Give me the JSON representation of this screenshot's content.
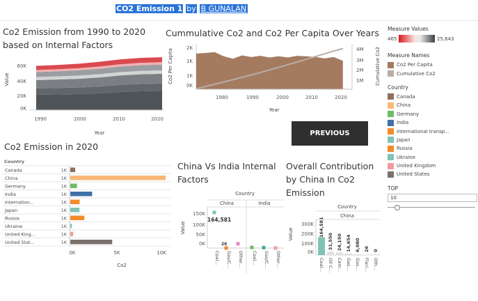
{
  "header": {
    "title": "CO2 Emission 1",
    "by": "by",
    "author": "B GUNALAN"
  },
  "prev_button": {
    "label": "PREVIOUS"
  },
  "colors": {
    "canada": "#8f6f5e",
    "china": "#f9b876",
    "germany": "#6ebc62",
    "india": "#3f70a8",
    "international": "#f28b2a",
    "japan": "#7fc3b7",
    "russia": "#f28b2a",
    "ukraine": "#7fc3b7",
    "united_kingdom": "#f19b9b",
    "united_states": "#7a716c",
    "cumulative": "#b8ada6",
    "per_capita": "#a57b60"
  },
  "legends": {
    "measure_values": {
      "title": "Measure Values",
      "min": "465",
      "max": "25,643"
    },
    "measure_names": {
      "title": "Measure Names",
      "items": [
        "Co2 Per Capita",
        "Cumulative Co2"
      ]
    },
    "country": {
      "title": "Country",
      "items": [
        "Canada",
        "China",
        "Germany",
        "India",
        "International transp...",
        "Japan",
        "Russia",
        "Ukraine",
        "United Kingdom",
        "United States"
      ]
    },
    "top": {
      "title": "TOP",
      "value": "10",
      "slider_level": 0.1
    }
  },
  "charts": {
    "area": {
      "title": "Co2 Emission from 1990 to 2020 based on Internal Factors",
      "title_lines": [
        "Co2 Emission from 1990 to 2020",
        "based on Internal Factors"
      ],
      "ylabel": "Value",
      "xlabel": "Year",
      "yticks": [
        "60K",
        "40K",
        "20K",
        "0K"
      ],
      "xticks": [
        "1990",
        "2000",
        "2010",
        "2020"
      ]
    },
    "cumulative": {
      "title": "Cummulative Co2 and Co2 Per Capita Over Years",
      "ylabel_left": "Co2 Per Capita",
      "ylabel_right": "Cumulative Co2",
      "xlabel": "Year",
      "yticks_left": [
        "2K",
        "1K",
        "1K",
        "0K"
      ],
      "yticks_right": [
        "4M",
        "3M",
        "2M",
        "1M"
      ],
      "xticks": [
        "1980",
        "1990",
        "2000",
        "2010",
        "2020"
      ]
    },
    "emission2020": {
      "title": "Co2 Emission in 2020",
      "header": "Country",
      "xlabel": "Co2",
      "xticks": [
        "0K",
        "5K",
        "10K"
      ],
      "row_value_label": "1K",
      "rows": [
        {
          "country": "Canada",
          "label": "Canada"
        },
        {
          "country": "China",
          "label": "China"
        },
        {
          "country": "Germany",
          "label": "Germany"
        },
        {
          "country": "India",
          "label": "India"
        },
        {
          "country": "International transport",
          "label": "Internation..."
        },
        {
          "country": "Japan",
          "label": "Japan"
        },
        {
          "country": "Russia",
          "label": "Russia"
        },
        {
          "country": "Ukraine",
          "label": "Ukraine"
        },
        {
          "country": "United Kingdom",
          "label": "United King..."
        },
        {
          "country": "United States",
          "label": "United Stat..."
        }
      ]
    },
    "china_india": {
      "title": "China Vs India Internal Factors",
      "title_lines": [
        "China Vs India Internal",
        "Factors"
      ],
      "header": "Country",
      "ylabel": "Value",
      "countries": [
        "China",
        "India"
      ],
      "yticks": [
        "150K",
        "100K",
        "50K",
        "0K"
      ],
      "china_labels": [
        "164,581",
        "26"
      ],
      "xcats_china": [
        "Coal...",
        "Gas/C...",
        "Other..."
      ],
      "xcats_india": [
        "Coal...",
        "Gas/C...",
        "Other..."
      ]
    },
    "overall": {
      "title": "Overall Contribution by China In Co2 Emission",
      "title_lines": [
        "Overall Contribution",
        "by China In Co2",
        "Emission"
      ],
      "header": "Country",
      "country": "China",
      "ylabel": "Value",
      "yticks": [
        "300K",
        "200K",
        "100K",
        "0K"
      ],
      "xcats": [
        "Coal...",
        "Oil C...",
        "Cem...",
        "Gas...",
        "Gas...",
        "Flari...",
        "Oth..."
      ],
      "bar_labels": [
        "164,581",
        "31,550",
        "24,150",
        "14,654",
        "6,080",
        "26",
        "0"
      ]
    }
  },
  "chart_data": [
    {
      "type": "area",
      "title": "Co2 Emission from 1990 to 2020 based on Internal Factors",
      "xlabel": "Year",
      "ylabel": "Value",
      "xlim": [
        1990,
        2020
      ],
      "ylim": [
        0,
        70000
      ],
      "x": [
        1990,
        1995,
        2000,
        2005,
        2010,
        2015,
        2020
      ],
      "series": [
        {
          "values": [
            22000,
            22500,
            23000,
            24000,
            26000,
            27000,
            27500
          ]
        },
        {
          "values": [
            9000,
            9200,
            9400,
            9800,
            10200,
            10500,
            10600
          ]
        },
        {
          "values": [
            12000,
            12200,
            12500,
            13000,
            13500,
            13900,
            14000
          ]
        },
        {
          "values": [
            4500,
            4500,
            4600,
            4700,
            4800,
            4900,
            4900
          ]
        },
        {
          "values": [
            7000,
            7200,
            7500,
            7800,
            8000,
            8200,
            8300
          ]
        },
        {
          "values": [
            3000,
            3000,
            3100,
            3200,
            3300,
            3400,
            3400
          ]
        },
        {
          "values": [
            6000,
            6200,
            6400,
            6700,
            7000,
            7100,
            7200
          ]
        }
      ]
    },
    {
      "type": "bar",
      "title": "Cummulative Co2 and Co2 Per Capita Over Years",
      "xlabel": "Year",
      "xlim": [
        1973,
        2024
      ],
      "x": [
        1973,
        1976,
        1979,
        1982,
        1985,
        1988,
        1991,
        1994,
        1997,
        2000,
        2003,
        2006,
        2009,
        2012,
        2015,
        2018,
        2021
      ],
      "series": [
        {
          "name": "Co2 Per Capita",
          "ylim": [
            0,
            2200
          ],
          "values": [
            1730,
            1760,
            1800,
            1600,
            1480,
            1640,
            1560,
            1620,
            1540,
            1600,
            1540,
            1620,
            1600,
            1560,
            1500,
            1560,
            1380
          ]
        },
        {
          "name": "Cumulative Co2",
          "ylim": [
            0,
            4400000
          ],
          "type": "line",
          "values": [
            50000,
            260000,
            480000,
            700000,
            920000,
            1150000,
            1380000,
            1620000,
            1870000,
            2120000,
            2380000,
            2640000,
            2900000,
            3170000,
            3440000,
            3700000,
            3950000
          ]
        }
      ]
    },
    {
      "type": "bar",
      "title": "Co2 Emission in 2020",
      "xlabel": "Co2",
      "categories": [
        "Canada",
        "China",
        "Germany",
        "India",
        "International transport",
        "Japan",
        "Russia",
        "Ukraine",
        "United Kingdom",
        "United States"
      ],
      "values": [
        550,
        10700,
        750,
        2450,
        1050,
        1030,
        1580,
        170,
        330,
        4700
      ],
      "xlim": [
        0,
        11000
      ]
    },
    {
      "type": "scatter",
      "title": "China Vs India Internal Factors",
      "ylabel": "Value",
      "ylim": [
        0,
        190000
      ],
      "series": [
        {
          "name": "China",
          "x": [
            "Coal",
            "Gas/Cement",
            "Other"
          ],
          "values": [
            164581,
            26,
            20000
          ]
        },
        {
          "name": "India",
          "x": [
            "Coal",
            "Gas/Cement",
            "Other"
          ],
          "values": [
            3000,
            2000,
            0
          ]
        }
      ]
    },
    {
      "type": "bar",
      "title": "Overall Contribution by China In Co2 Emission",
      "ylabel": "Value",
      "ylim": [
        0,
        330000
      ],
      "categories": [
        "Coal",
        "Oil",
        "Cement",
        "Gas",
        "Gas",
        "Flaring",
        "Other"
      ],
      "values": [
        164581,
        31550,
        24150,
        14654,
        6080,
        26,
        0
      ]
    }
  ]
}
